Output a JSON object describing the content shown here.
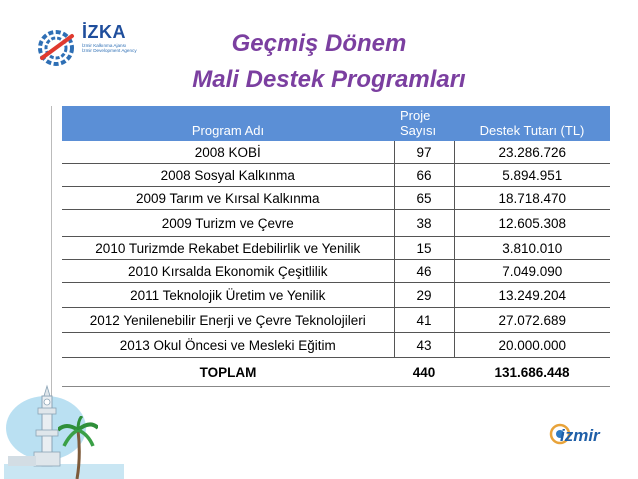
{
  "logo": {
    "name": "İZKA",
    "subtitle_line1": "İzmir Kalkınma Ajansı",
    "subtitle_line2": "İzmir Development Agency"
  },
  "title": {
    "line1": "Geçmiş Dönem",
    "line2": "Mali Destek Programları"
  },
  "table": {
    "headers": {
      "program": "Program Adı",
      "count_line1": "Proje",
      "count_line2": "Sayısı",
      "amount": "Destek Tutarı (TL)"
    },
    "rows": [
      {
        "program": "2008 KOBİ",
        "count": "97",
        "amount": "23.286.726"
      },
      {
        "program": "2008 Sosyal Kalkınma",
        "count": "66",
        "amount": "5.894.951"
      },
      {
        "program": "2009 Tarım ve Kırsal Kalkınma",
        "count": "65",
        "amount": "18.718.470"
      },
      {
        "program": "2009 Turizm ve Çevre",
        "count": "38",
        "amount": "12.605.308"
      },
      {
        "program": "2010 Turizmde Rekabet Edebilirlik ve Yenilik",
        "count": "15",
        "amount": "3.810.010"
      },
      {
        "program": "2010 Kırsalda Ekonomik Çeşitlilik",
        "count": "46",
        "amount": "7.049.090"
      },
      {
        "program": "2011 Teknolojik Üretim ve Yenilik",
        "count": "29",
        "amount": "13.249.204"
      },
      {
        "program": "2012 Yenilenebilir Enerji ve Çevre Teknolojileri",
        "count": "41",
        "amount": "27.072.689"
      },
      {
        "program": "2013 Okul Öncesi ve Mesleki Eğitim",
        "count": "43",
        "amount": "20.000.000"
      }
    ],
    "total": {
      "label": "TOPLAM",
      "count": "440",
      "amount": "131.686.448"
    }
  },
  "footer_logo": {
    "text": "izmir"
  },
  "colors": {
    "title": "#7b3fa0",
    "header_bg": "#5b8fd6",
    "logo_blue": "#1f4e9c",
    "logo_red": "#e03a2f",
    "sky": "#a9d8ef"
  },
  "icons": [
    "izka-logo-icon",
    "clock-tower-icon",
    "palm-tree-icon",
    "izmir-logo-icon"
  ]
}
